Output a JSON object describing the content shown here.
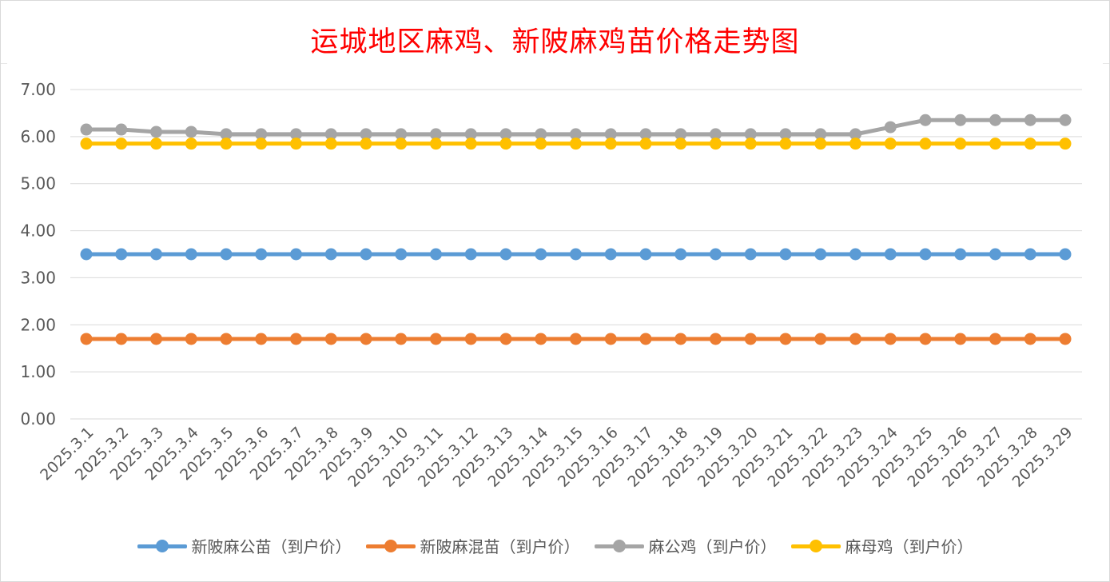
{
  "chart_data": {
    "type": "line",
    "title": "运城地区麻鸡、新陂麻鸡苗价格走势图",
    "xlabel": "",
    "ylabel": "",
    "ylim": [
      0,
      7
    ],
    "yticks": [
      "0.00",
      "1.00",
      "2.00",
      "3.00",
      "4.00",
      "5.00",
      "6.00",
      "7.00"
    ],
    "grid": true,
    "legend_position": "bottom",
    "categories": [
      "2025.3.1",
      "2025.3.2",
      "2025.3.3",
      "2025.3.4",
      "2025.3.5",
      "2025.3.6",
      "2025.3.7",
      "2025.3.8",
      "2025.3.9",
      "2025.3.10",
      "2025.3.11",
      "2025.3.12",
      "2025.3.13",
      "2025.3.14",
      "2025.3.15",
      "2025.3.16",
      "2025.3.17",
      "2025.3.18",
      "2025.3.19",
      "2025.3.20",
      "2025.3.21",
      "2025.3.22",
      "2025.3.23",
      "2025.3.24",
      "2025.3.25",
      "2025.3.26",
      "2025.3.27",
      "2025.3.28",
      "2025.3.29"
    ],
    "series": [
      {
        "name": "新陂麻公苗（到户价）",
        "color": "#5b9bd5",
        "values": [
          3.5,
          3.5,
          3.5,
          3.5,
          3.5,
          3.5,
          3.5,
          3.5,
          3.5,
          3.5,
          3.5,
          3.5,
          3.5,
          3.5,
          3.5,
          3.5,
          3.5,
          3.5,
          3.5,
          3.5,
          3.5,
          3.5,
          3.5,
          3.5,
          3.5,
          3.5,
          3.5,
          3.5,
          3.5
        ]
      },
      {
        "name": "新陂麻混苗（到户价）",
        "color": "#ed7d31",
        "values": [
          1.7,
          1.7,
          1.7,
          1.7,
          1.7,
          1.7,
          1.7,
          1.7,
          1.7,
          1.7,
          1.7,
          1.7,
          1.7,
          1.7,
          1.7,
          1.7,
          1.7,
          1.7,
          1.7,
          1.7,
          1.7,
          1.7,
          1.7,
          1.7,
          1.7,
          1.7,
          1.7,
          1.7,
          1.7
        ]
      },
      {
        "name": "麻公鸡（到户价）",
        "color": "#a5a5a5",
        "values": [
          6.15,
          6.15,
          6.1,
          6.1,
          6.05,
          6.05,
          6.05,
          6.05,
          6.05,
          6.05,
          6.05,
          6.05,
          6.05,
          6.05,
          6.05,
          6.05,
          6.05,
          6.05,
          6.05,
          6.05,
          6.05,
          6.05,
          6.05,
          6.2,
          6.35,
          6.35,
          6.35,
          6.35,
          6.35
        ]
      },
      {
        "name": "麻母鸡（到户价）",
        "color": "#ffc000",
        "values": [
          5.85,
          5.85,
          5.85,
          5.85,
          5.85,
          5.85,
          5.85,
          5.85,
          5.85,
          5.85,
          5.85,
          5.85,
          5.85,
          5.85,
          5.85,
          5.85,
          5.85,
          5.85,
          5.85,
          5.85,
          5.85,
          5.85,
          5.85,
          5.85,
          5.85,
          5.85,
          5.85,
          5.85,
          5.85
        ]
      }
    ]
  }
}
